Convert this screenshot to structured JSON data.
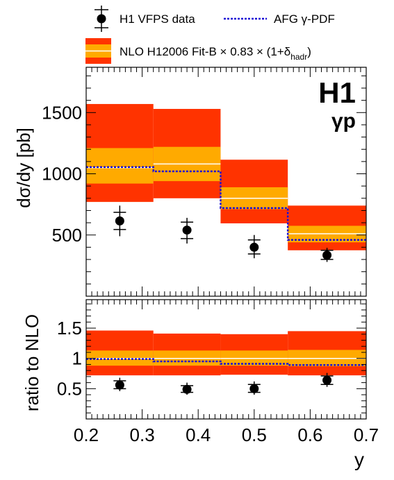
{
  "legend": {
    "data_label": "H1 VFPS data",
    "pdf_label": "AFG γ-PDF",
    "nlo_label_main": "NLO H12006 Fit-B × 0.83 × (1+δ",
    "nlo_label_sub": "hadr",
    "nlo_label_close": ")"
  },
  "experiment_label": "H1",
  "process_label": "γp",
  "colors": {
    "outer_band": "#ff3300",
    "inner_band": "#ffaa00",
    "central_line": "#ffffff",
    "pdf_line": "#1a0fd6",
    "data": "#000000"
  },
  "chart_data": [
    {
      "type": "bar",
      "panel": "top",
      "ylabel": "dσ/dy [pb]",
      "xlim": [
        0.2,
        0.7
      ],
      "ylim": [
        0,
        1870
      ],
      "yticks": [
        500,
        1000,
        1500
      ],
      "bins": [
        [
          0.2,
          0.32
        ],
        [
          0.32,
          0.44
        ],
        [
          0.44,
          0.56
        ],
        [
          0.56,
          0.7
        ]
      ],
      "nlo_central": [
        1050,
        1080,
        800,
        510
      ],
      "nlo_inner": [
        [
          920,
          1210
        ],
        [
          940,
          1220
        ],
        [
          710,
          890
        ],
        [
          440,
          575
        ]
      ],
      "nlo_outer": [
        [
          770,
          1570
        ],
        [
          800,
          1530
        ],
        [
          595,
          1115
        ],
        [
          375,
          740
        ]
      ],
      "afg_pdf": [
        1055,
        1020,
        720,
        460
      ],
      "data": {
        "x": [
          0.26,
          0.38,
          0.5,
          0.63
        ],
        "y": [
          615,
          540,
          400,
          335
        ],
        "err_stat": [
          [
            545,
            685
          ],
          [
            470,
            605
          ],
          [
            345,
            460
          ],
          [
            300,
            375
          ]
        ],
        "err_tot": [
          [
            490,
            740
          ],
          [
            430,
            640
          ],
          [
            310,
            500
          ],
          [
            280,
            395
          ]
        ]
      }
    },
    {
      "type": "bar",
      "panel": "bottom",
      "ylabel": "ratio to NLO",
      "xlabel": "y",
      "xlim": [
        0.2,
        0.7
      ],
      "ylim": [
        0,
        1.97
      ],
      "xticks": [
        "0.2",
        "0.3",
        "0.4",
        "0.5",
        "0.6",
        "0.7"
      ],
      "yticks": [
        "0.5",
        "1",
        "1.5"
      ],
      "bins": [
        [
          0.2,
          0.32
        ],
        [
          0.32,
          0.44
        ],
        [
          0.44,
          0.56
        ],
        [
          0.56,
          0.7
        ]
      ],
      "nlo_central": [
        1.0,
        1.0,
        1.0,
        1.0
      ],
      "nlo_inner": [
        [
          0.88,
          1.13
        ],
        [
          0.88,
          1.13
        ],
        [
          0.88,
          1.13
        ],
        [
          0.87,
          1.14
        ]
      ],
      "nlo_outer": [
        [
          0.72,
          1.46
        ],
        [
          0.72,
          1.41
        ],
        [
          0.73,
          1.4
        ],
        [
          0.72,
          1.45
        ]
      ],
      "afg_pdf": [
        0.99,
        0.95,
        0.91,
        0.89
      ],
      "data": {
        "x": [
          0.26,
          0.38,
          0.5,
          0.63
        ],
        "y": [
          0.56,
          0.49,
          0.5,
          0.64
        ],
        "err_stat": [
          [
            0.5,
            0.63
          ],
          [
            0.44,
            0.55
          ],
          [
            0.44,
            0.57
          ],
          [
            0.57,
            0.71
          ]
        ],
        "err_tot": [
          [
            0.46,
            0.68
          ],
          [
            0.4,
            0.6
          ],
          [
            0.4,
            0.62
          ],
          [
            0.53,
            0.76
          ]
        ]
      }
    }
  ]
}
